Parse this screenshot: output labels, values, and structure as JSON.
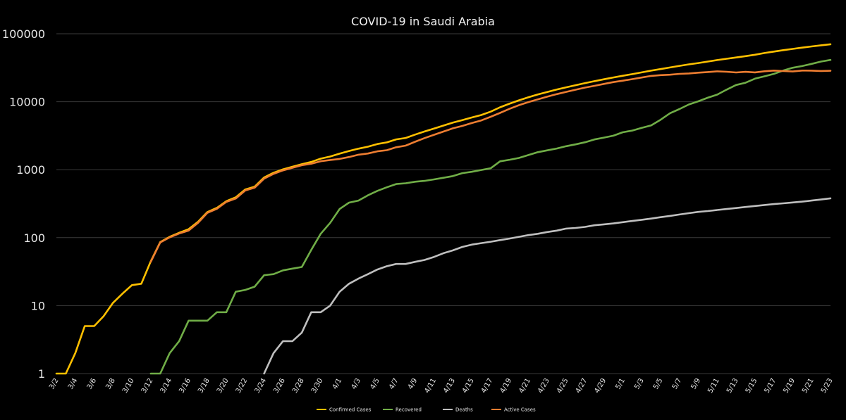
{
  "chart_data": {
    "type": "line",
    "title": "COVID-19 in Saudi Arabia",
    "xlabel": "",
    "ylabel": "",
    "y_scale": "log",
    "ylim": [
      1,
      100000
    ],
    "yticks": [
      "1",
      "10",
      "100",
      "1000",
      "10000",
      "100000"
    ],
    "grid": true,
    "legend_position": "bottom",
    "x": [
      "3/2",
      "3/3",
      "3/4",
      "3/5",
      "3/6",
      "3/7",
      "3/8",
      "3/9",
      "3/10",
      "3/11",
      "3/12",
      "3/13",
      "3/14",
      "3/15",
      "3/16",
      "3/17",
      "3/18",
      "3/19",
      "3/20",
      "3/21",
      "3/22",
      "3/23",
      "3/24",
      "3/25",
      "3/26",
      "3/27",
      "3/28",
      "3/29",
      "3/30",
      "3/31",
      "4/1",
      "4/2",
      "4/3",
      "4/4",
      "4/5",
      "4/6",
      "4/7",
      "4/8",
      "4/9",
      "4/10",
      "4/11",
      "4/12",
      "4/13",
      "4/14",
      "4/15",
      "4/16",
      "4/17",
      "4/18",
      "4/19",
      "4/20",
      "4/21",
      "4/22",
      "4/23",
      "4/24",
      "4/25",
      "4/26",
      "4/27",
      "4/28",
      "4/29",
      "4/30",
      "5/1",
      "5/2",
      "5/3",
      "5/4",
      "5/5",
      "5/6",
      "5/7",
      "5/8",
      "5/9",
      "5/10",
      "5/11",
      "5/12",
      "5/13",
      "5/14",
      "5/15",
      "5/16",
      "5/17",
      "5/18",
      "5/19",
      "5/20",
      "5/21",
      "5/22",
      "5/23"
    ],
    "xtick_labels": [
      "3/2",
      "3/4",
      "3/6",
      "3/8",
      "3/10",
      "3/12",
      "3/14",
      "3/16",
      "3/18",
      "3/20",
      "3/22",
      "3/24",
      "3/26",
      "3/28",
      "3/30",
      "4/1",
      "4/3",
      "4/5",
      "4/7",
      "4/9",
      "4/11",
      "4/13",
      "4/15",
      "4/17",
      "4/19",
      "4/21",
      "4/23",
      "4/25",
      "4/27",
      "4/29",
      "5/1",
      "5/3",
      "5/5",
      "5/7",
      "5/9",
      "5/11",
      "5/13",
      "5/15",
      "5/17",
      "5/19",
      "5/21",
      "5/23"
    ],
    "series": [
      {
        "name": "Confirmed Cases",
        "color": "#ffc000",
        "values": [
          1,
          1,
          2,
          5,
          5,
          7,
          11,
          15,
          20,
          21,
          45,
          86,
          103,
          118,
          133,
          171,
          238,
          274,
          344,
          392,
          511,
          562,
          767,
          900,
          1012,
          1104,
          1203,
          1299,
          1453,
          1563,
          1720,
          1885,
          2039,
          2179,
          2385,
          2523,
          2795,
          2932,
          3287,
          3651,
          4033,
          4462,
          4934,
          5369,
          5862,
          6380,
          7142,
          8274,
          9362,
          10484,
          11631,
          12772,
          13930,
          15102,
          16299,
          17522,
          18811,
          20077,
          21402,
          22753,
          24097,
          25459,
          27011,
          28656,
          30251,
          31938,
          33731,
          35432,
          37136,
          39048,
          41014,
          42925,
          44830,
          46869,
          49176,
          52016,
          54752,
          57345,
          59854,
          62545,
          65077,
          67719,
          70161
        ]
      },
      {
        "name": "Recovered",
        "color": "#70ad47",
        "values": [
          null,
          null,
          null,
          null,
          null,
          null,
          null,
          null,
          null,
          null,
          1,
          1,
          2,
          3,
          6,
          6,
          6,
          8,
          8,
          16,
          17,
          19,
          28,
          29,
          33,
          35,
          37,
          66,
          114,
          165,
          264,
          328,
          351,
          420,
          488,
          551,
          615,
          631,
          666,
          685,
          720,
          761,
          805,
          889,
          931,
          990,
          1049,
          1329,
          1398,
          1490,
          1640,
          1812,
          1925,
          2049,
          2215,
          2357,
          2531,
          2784,
          2963,
          3163,
          3555,
          3765,
          4134,
          4476,
          5431,
          6783,
          7798,
          9120,
          10144,
          11457,
          12737,
          15057,
          17622,
          19051,
          21869,
          23666,
          25722,
          28748,
          31634,
          33478,
          36040,
          39003,
          41236
        ]
      },
      {
        "name": "Deaths",
        "color": "#bfbfbf",
        "values": [
          null,
          null,
          null,
          null,
          null,
          null,
          null,
          null,
          null,
          null,
          null,
          null,
          null,
          null,
          null,
          null,
          null,
          null,
          null,
          null,
          null,
          null,
          1,
          2,
          3,
          3,
          4,
          8,
          8,
          10,
          16,
          21,
          25,
          29,
          34,
          38,
          41,
          41,
          44,
          47,
          52,
          59,
          65,
          73,
          79,
          83,
          87,
          92,
          97,
          103,
          109,
          114,
          121,
          127,
          136,
          139,
          144,
          152,
          157,
          162,
          169,
          176,
          183,
          191,
          200,
          209,
          219,
          229,
          239,
          246,
          255,
          264,
          273,
          283,
          292,
          302,
          312,
          320,
          329,
          339,
          351,
          364,
          379
        ]
      },
      {
        "name": "Active Cases",
        "color": "#ed7d31",
        "values": [
          null,
          null,
          null,
          null,
          null,
          null,
          null,
          null,
          null,
          null,
          44,
          85,
          101,
          115,
          127,
          165,
          232,
          266,
          336,
          376,
          494,
          543,
          739,
          869,
          976,
          1066,
          1162,
          1225,
          1331,
          1388,
          1440,
          1536,
          1663,
          1730,
          1863,
          1934,
          2139,
          2260,
          2577,
          2919,
          3261,
          3642,
          4064,
          4407,
          4852,
          5307,
          6006,
          6853,
          7867,
          8891,
          9882,
          10846,
          11884,
          12926,
          13948,
          15026,
          16136,
          17141,
          18282,
          19428,
          20373,
          21518,
          22694,
          23989,
          24620,
          24946,
          25714,
          26083,
          26753,
          27345,
          28022,
          27604,
          26935,
          27535,
          27015,
          28048,
          28718,
          28277,
          27891,
          28728,
          28686,
          28352,
          28546
        ]
      }
    ]
  }
}
